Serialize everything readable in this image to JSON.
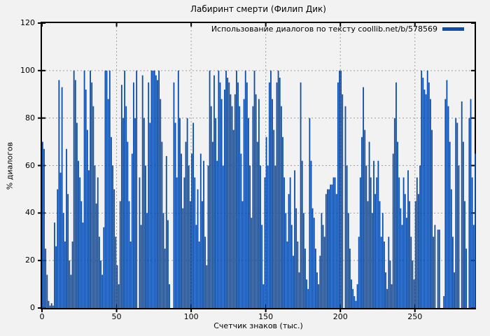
{
  "chart_data": {
    "type": "bar",
    "style": "impulses",
    "title": "Лабиринт смерти (Филип Дик)",
    "series_name": "Использование диалогов по тексту coollib.net/b/578569",
    "xlabel": "Счетчик знаков (тыс.)",
    "ylabel": "% диалогов",
    "xlim": [
      0,
      290
    ],
    "ylim": [
      0,
      120
    ],
    "xticks": [
      0,
      50,
      100,
      150,
      200,
      250
    ],
    "yticks": [
      0,
      20,
      40,
      60,
      80,
      100,
      120
    ],
    "grid": true,
    "legend_position": "top-right-inside",
    "bar_color": "#0b4da8",
    "background": "#f2f2f2",
    "x_start": 0,
    "x_step": 1,
    "values": [
      70,
      67,
      25,
      14,
      3,
      1,
      2,
      1,
      36,
      26,
      50,
      96,
      57,
      93,
      40,
      28,
      67,
      48,
      20,
      14,
      28,
      100,
      96,
      78,
      62,
      55,
      45,
      36,
      100,
      92,
      75,
      58,
      100,
      95,
      85,
      60,
      44,
      55,
      30,
      20,
      14,
      34,
      100,
      100,
      88,
      100,
      72,
      60,
      50,
      30,
      18,
      10,
      45,
      94,
      80,
      100,
      85,
      70,
      45,
      28,
      65,
      95,
      80,
      100,
      0,
      55,
      35,
      98,
      80,
      60,
      40,
      95,
      78,
      100,
      100,
      100,
      98,
      96,
      100,
      88,
      70,
      40,
      25,
      64,
      37,
      10,
      0,
      0,
      95,
      78,
      55,
      100,
      80,
      65,
      42,
      55,
      70,
      80,
      60,
      45,
      65,
      78,
      55,
      35,
      50,
      28,
      65,
      45,
      62,
      30,
      18,
      60,
      100,
      85,
      70,
      98,
      80,
      62,
      100,
      95,
      88,
      60,
      92,
      100,
      97,
      95,
      90,
      85,
      75,
      90,
      100,
      95,
      85,
      65,
      45,
      88,
      100,
      95,
      80,
      60,
      38,
      85,
      100,
      90,
      70,
      88,
      60,
      35,
      10,
      55,
      72,
      60,
      95,
      100,
      88,
      75,
      60,
      95,
      100,
      97,
      85,
      72,
      55,
      40,
      28,
      48,
      55,
      35,
      22,
      58,
      42,
      28,
      15,
      95,
      62,
      40,
      25,
      12,
      8,
      80,
      62,
      42,
      38,
      25,
      15,
      10,
      22,
      40,
      35,
      30,
      48,
      50,
      50,
      52,
      52,
      55,
      55,
      48,
      95,
      100,
      100,
      90,
      0,
      85,
      60,
      40,
      25,
      12,
      8,
      5,
      3,
      10,
      30,
      55,
      72,
      93,
      75,
      60,
      45,
      70,
      55,
      40,
      62,
      48,
      55,
      62,
      45,
      30,
      40,
      28,
      15,
      8,
      30,
      20,
      10,
      65,
      80,
      95,
      70,
      55,
      42,
      35,
      55,
      48,
      38,
      58,
      45,
      30,
      20,
      12,
      45,
      55,
      48,
      60,
      100,
      97,
      92,
      90,
      100,
      95,
      88,
      75,
      30,
      35,
      0,
      33,
      33,
      0,
      0,
      5,
      88,
      96,
      85,
      70,
      50,
      30,
      15,
      80,
      78,
      60,
      0,
      87,
      70,
      45,
      25,
      0,
      80,
      88,
      55,
      35,
      65
    ]
  }
}
